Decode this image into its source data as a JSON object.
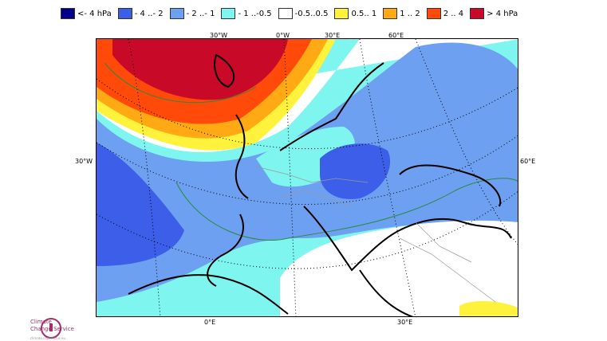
{
  "legend": {
    "items": [
      {
        "label": "<- 4 hPa",
        "color": "#00008c"
      },
      {
        "label": "- 4 ..- 2",
        "color": "#3c5ee8"
      },
      {
        "label": "- 2 ..- 1",
        "color": "#6da0f0"
      },
      {
        "label": "- 1 ..-0.5",
        "color": "#7ff5f0"
      },
      {
        "label": "-0.5..0.5",
        "color": "#ffffff"
      },
      {
        "label": "0.5.. 1",
        "color": "#fff23c"
      },
      {
        "label": "1 .. 2",
        "color": "#ffaa14"
      },
      {
        "label": "2 .. 4",
        "color": "#ff4a0a"
      },
      {
        "label": ">  4 hPa",
        "color": "#c80a28"
      }
    ]
  },
  "map": {
    "top_labels": [
      "30°W",
      "0°W",
      "30°E",
      "60°E"
    ],
    "left_label": "30°W",
    "right_label": "60°E",
    "bottom_labels": [
      "0°E",
      "30°E"
    ]
  },
  "logo": {
    "line1": "Climate",
    "line2": "Change Service",
    "line3": "climate.copernicus.eu"
  }
}
